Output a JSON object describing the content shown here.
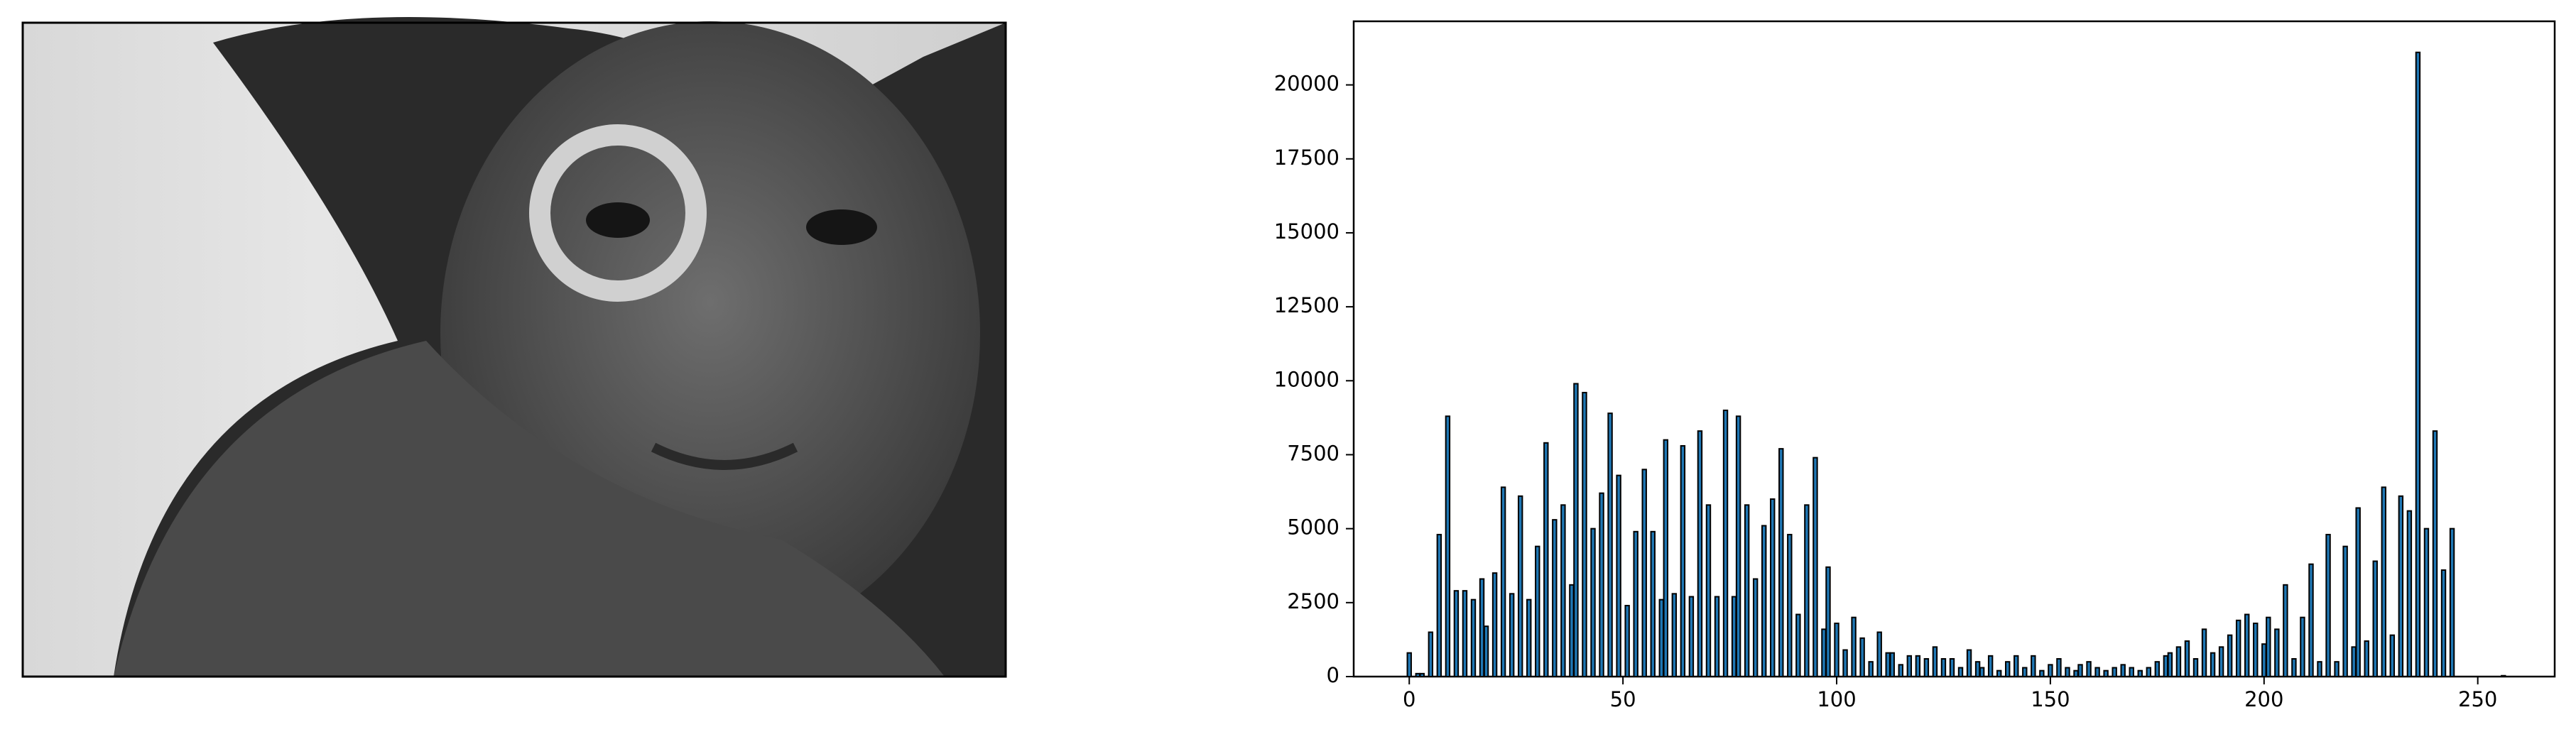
{
  "chart_data": {
    "type": "bar",
    "x": [
      0,
      2,
      3,
      5,
      7,
      9,
      11,
      13,
      15,
      17,
      18,
      20,
      22,
      24,
      26,
      28,
      30,
      32,
      34,
      36,
      38,
      39,
      41,
      43,
      45,
      47,
      49,
      51,
      53,
      55,
      57,
      59,
      60,
      62,
      64,
      66,
      68,
      70,
      72,
      74,
      76,
      77,
      79,
      81,
      83,
      85,
      87,
      89,
      91,
      93,
      95,
      97,
      98,
      100,
      102,
      104,
      106,
      108,
      110,
      112,
      113,
      115,
      117,
      119,
      121,
      123,
      125,
      127,
      129,
      131,
      133,
      134,
      136,
      138,
      140,
      142,
      144,
      146,
      148,
      150,
      152,
      154,
      156,
      157,
      159,
      161,
      163,
      165,
      167,
      169,
      171,
      173,
      175,
      177,
      178,
      180,
      182,
      184,
      186,
      188,
      190,
      192,
      194,
      196,
      198,
      200,
      201,
      203,
      205,
      207,
      209,
      211,
      213,
      215,
      217,
      219,
      221,
      222,
      224,
      226,
      228,
      230,
      232,
      234,
      236,
      238,
      240,
      242,
      244,
      256
    ],
    "values": [
      800,
      100,
      100,
      1500,
      4800,
      8800,
      2900,
      2900,
      2600,
      3300,
      1700,
      3500,
      6400,
      2800,
      6100,
      2600,
      4400,
      7900,
      5300,
      5800,
      3100,
      9900,
      9600,
      5000,
      6200,
      8900,
      6800,
      2400,
      4900,
      7000,
      4900,
      2600,
      8000,
      2800,
      7800,
      2700,
      8300,
      5800,
      2700,
      9000,
      2700,
      8800,
      5800,
      3300,
      5100,
      6000,
      7700,
      4800,
      2100,
      5800,
      7400,
      1600,
      3700,
      1800,
      900,
      2000,
      1300,
      500,
      1500,
      800,
      800,
      400,
      700,
      700,
      600,
      1000,
      600,
      600,
      300,
      900,
      500,
      300,
      700,
      200,
      500,
      700,
      300,
      700,
      200,
      400,
      600,
      300,
      200,
      400,
      500,
      300,
      200,
      300,
      400,
      300,
      200,
      300,
      500,
      700,
      800,
      1000,
      1200,
      600,
      1600,
      800,
      1000,
      1400,
      1900,
      2100,
      1800,
      1100,
      2000,
      1600,
      3100,
      600,
      2000,
      3800,
      500,
      4800,
      500,
      4400,
      1000,
      5700,
      1200,
      3900,
      6400,
      1400,
      6100,
      5600,
      21100,
      5000,
      8300,
      3600,
      5000,
      30
    ],
    "color": "#1f77b4",
    "edgecolor": "#000000",
    "xlim": [
      -13,
      268
    ],
    "ylim": [
      0,
      22150
    ],
    "xticks": [
      0,
      50,
      100,
      150,
      200,
      250
    ],
    "yticks": [
      0,
      2500,
      5000,
      7500,
      10000,
      12500,
      15000,
      17500,
      20000
    ]
  }
}
